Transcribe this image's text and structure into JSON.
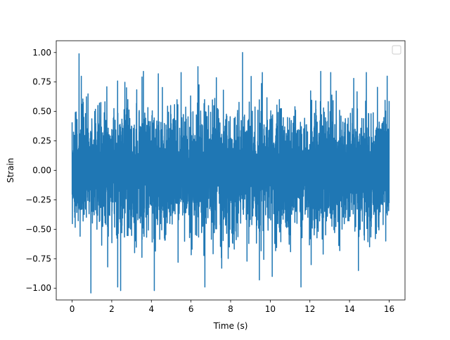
{
  "chart_data": {
    "type": "line",
    "title": "",
    "xlabel": "Time (s)",
    "ylabel": "Strain",
    "xlim": [
      -0.8,
      16.8
    ],
    "ylim": [
      -1.1,
      1.1
    ],
    "x_ticks": [
      0,
      2,
      4,
      6,
      8,
      10,
      12,
      14,
      16
    ],
    "x_tick_labels": [
      "0",
      "2",
      "4",
      "6",
      "8",
      "10",
      "12",
      "14",
      "16"
    ],
    "y_ticks": [
      -1.0,
      -0.75,
      -0.5,
      -0.25,
      0.0,
      0.25,
      0.5,
      0.75,
      1.0
    ],
    "y_tick_labels": [
      "−1.00",
      "−0.75",
      "−0.50",
      "−0.25",
      "0.00",
      "0.25",
      "0.50",
      "0.75",
      "1.00"
    ],
    "grid": false,
    "legend": {
      "placement": "top-right",
      "entries": []
    },
    "series": [
      {
        "color": "#1f77b4",
        "t_start": 0,
        "t_end": 16,
        "approx_range": [
          -1.04,
          1.0
        ],
        "typical_envelope": [
          -0.55,
          0.55
        ],
        "peaks": [
          {
            "x": 0.35,
            "y": 0.99
          },
          {
            "x": 0.95,
            "y": -1.04
          },
          {
            "x": 2.3,
            "y": -0.99
          },
          {
            "x": 2.45,
            "y": -1.02
          },
          {
            "x": 4.15,
            "y": -1.02
          },
          {
            "x": 6.7,
            "y": -0.99
          },
          {
            "x": 8.6,
            "y": 1.0
          },
          {
            "x": 11.55,
            "y": -0.99
          },
          {
            "x": 3.6,
            "y": 0.84
          },
          {
            "x": 4.35,
            "y": 0.82
          },
          {
            "x": 5.5,
            "y": 0.83
          },
          {
            "x": 6.35,
            "y": 0.88
          },
          {
            "x": 9.6,
            "y": 0.83
          },
          {
            "x": 12.55,
            "y": 0.84
          },
          {
            "x": 13.05,
            "y": 0.83
          },
          {
            "x": 14.85,
            "y": 0.83
          },
          {
            "x": 15.9,
            "y": 0.8
          },
          {
            "x": 7.55,
            "y": -0.83
          },
          {
            "x": 9.45,
            "y": -0.93
          },
          {
            "x": 14.45,
            "y": -0.85
          },
          {
            "x": 10.1,
            "y": -0.9
          },
          {
            "x": 5.35,
            "y": -0.78
          }
        ]
      }
    ]
  }
}
